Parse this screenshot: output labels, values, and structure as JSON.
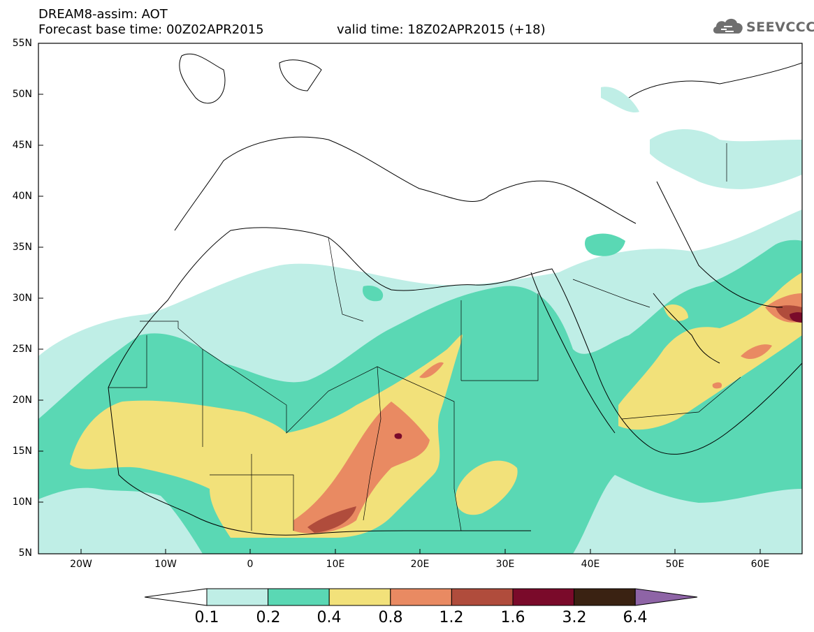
{
  "header": {
    "title": "DREAM8-assim: AOT",
    "base_time": "Forecast base time: 00Z02APR2015",
    "valid_time": "valid time: 18Z02APR2015 (+18)"
  },
  "logo": {
    "text": "SEEVCCC",
    "icon": "cloud-icon"
  },
  "map": {
    "variable": "AOT",
    "lat_labels": [
      "55N",
      "50N",
      "45N",
      "40N",
      "35N",
      "30N",
      "25N",
      "20N",
      "15N",
      "10N",
      "5N"
    ],
    "lon_labels": [
      "20W",
      "10W",
      "0",
      "10E",
      "20E",
      "30E",
      "40E",
      "50E",
      "60E"
    ],
    "lat_range": [
      5,
      55
    ],
    "lon_range": [
      -25,
      65
    ]
  },
  "colorbar": {
    "labels": [
      "0.1",
      "0.2",
      "0.4",
      "0.8",
      "1.2",
      "1.6",
      "3.2",
      "6.4"
    ],
    "colors": [
      "#ffffff",
      "#bfeee6",
      "#5ad8b4",
      "#f2e17a",
      "#e98a62",
      "#b04c3c",
      "#7a0a2a",
      "#3a2212",
      "#8e64a6"
    ]
  }
}
